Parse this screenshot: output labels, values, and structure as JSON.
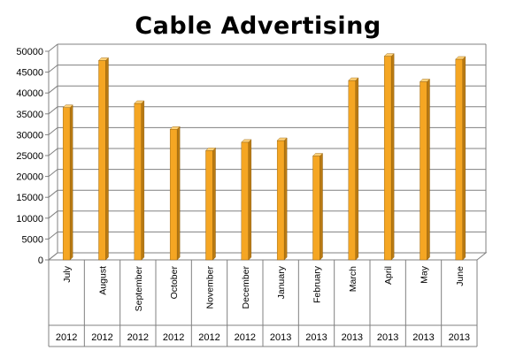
{
  "chart_data": {
    "type": "bar",
    "title": "Cable Advertising",
    "categories": [
      "July",
      "August",
      "September",
      "October",
      "November",
      "December",
      "January",
      "February",
      "March",
      "April",
      "May",
      "June"
    ],
    "years": [
      "2012",
      "2012",
      "2012",
      "2012",
      "2012",
      "2012",
      "2013",
      "2013",
      "2013",
      "2013",
      "2013",
      "2013"
    ],
    "values": [
      36500,
      47800,
      37500,
      31300,
      26200,
      28200,
      28600,
      24900,
      43000,
      48800,
      42700,
      48100
    ],
    "ylim": [
      0,
      50000
    ],
    "yticks": [
      0,
      5000,
      10000,
      15000,
      20000,
      25000,
      30000,
      35000,
      40000,
      45000,
      50000
    ],
    "grid": true,
    "bar_color": "#F5A623",
    "bar_shade_color": "#B97A12",
    "bar_top_color": "#FFD27A"
  }
}
